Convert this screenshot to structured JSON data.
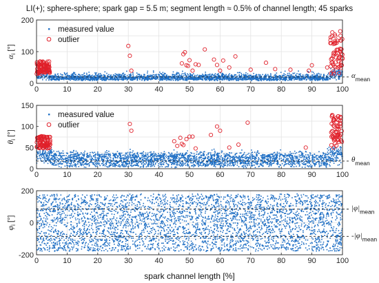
{
  "title": "LI(+); sphere-sphere; spark gap = 5.5 m; segment length ≈ 0.5% of channel length; 45 sparks",
  "xlabel": "spark channel length [%]",
  "colors": {
    "measured": "#1f6fc4",
    "outlier": "#e0202a",
    "axes": "#262626",
    "grid": "#e3e3e3",
    "ref": "#222222"
  },
  "chart_data": [
    {
      "type": "scatter",
      "panel": "alpha",
      "ylabel_symbol": "α",
      "ylabel_sub": "i",
      "ylabel_unit": " [°]",
      "xlim": [
        0,
        100
      ],
      "ylim": [
        0,
        200
      ],
      "xticks": [
        0,
        10,
        20,
        30,
        40,
        50,
        60,
        70,
        80,
        90,
        100
      ],
      "yticks": [
        0,
        100,
        200
      ],
      "grid": true,
      "legend": {
        "placement": "top-left",
        "entries": [
          "measured value",
          "outlier"
        ]
      },
      "reference_line": {
        "symbol": "α",
        "sub": "mean",
        "y": 20
      },
      "series": [
        {
          "name": "measured value",
          "marker": "dot",
          "description_band": [
            0,
            38
          ]
        },
        {
          "name": "outlier",
          "marker": "open-circle",
          "x": [
            30.0,
            30.5,
            31.0,
            47.5,
            48.0,
            48.5,
            49.0,
            49.5,
            50.0,
            51.0,
            52.0,
            53.0,
            55.0,
            58.0,
            59.0,
            60.0,
            61.0,
            63.0,
            65.0,
            70.0,
            75.0,
            78.0,
            83.0,
            89.0,
            90.0,
            95.0
          ],
          "y": [
            118,
            87,
            40,
            63,
            92,
            98,
            57,
            55,
            73,
            40,
            60,
            58,
            107,
            75,
            58,
            40,
            72,
            50,
            85,
            43,
            65,
            45,
            43,
            40,
            57,
            50
          ]
        }
      ]
    },
    {
      "type": "scatter",
      "panel": "theta",
      "ylabel_symbol": "θ",
      "ylabel_sub": "i",
      "ylabel_unit": " [°]",
      "xlim": [
        0,
        100
      ],
      "ylim": [
        0,
        150
      ],
      "xticks": [
        0,
        10,
        20,
        30,
        40,
        50,
        60,
        70,
        80,
        90,
        100
      ],
      "yticks": [
        0,
        50,
        100,
        150
      ],
      "grid": true,
      "legend": {
        "placement": "top-left",
        "entries": [
          "measured value",
          "outlier"
        ]
      },
      "reference_line": {
        "symbol": "θ",
        "sub": "mean",
        "y": 18
      },
      "series": [
        {
          "name": "measured value",
          "marker": "dot"
        },
        {
          "name": "outlier",
          "marker": "open-circle",
          "x": [
            30.5,
            31.0,
            45.0,
            46.0,
            47.0,
            47.5,
            48.0,
            49.0,
            50.0,
            51.0,
            52.0,
            57.0,
            59.0,
            60.0,
            63.0,
            66.0,
            69.0,
            88.0
          ],
          "y": [
            106,
            90,
            65,
            54,
            73,
            59,
            56,
            70,
            76,
            76,
            48,
            80,
            100,
            90,
            50,
            57,
            109,
            50
          ]
        }
      ]
    },
    {
      "type": "scatter",
      "panel": "phi",
      "ylabel_symbol": "φ",
      "ylabel_sub": "i",
      "ylabel_unit": " [°]",
      "xlim": [
        0,
        100
      ],
      "ylim": [
        -200,
        200
      ],
      "xticks": [
        0,
        10,
        20,
        30,
        40,
        50,
        60,
        70,
        80,
        90,
        100
      ],
      "yticks": [
        -200,
        0,
        200
      ],
      "grid": true,
      "reference_lines": [
        {
          "label": "|φ|",
          "sub": "mean",
          "y": 85
        },
        {
          "label": "-|φ|",
          "sub": "mean",
          "y": -85
        }
      ],
      "series": [
        {
          "name": "measured value",
          "marker": "dot"
        }
      ]
    }
  ]
}
